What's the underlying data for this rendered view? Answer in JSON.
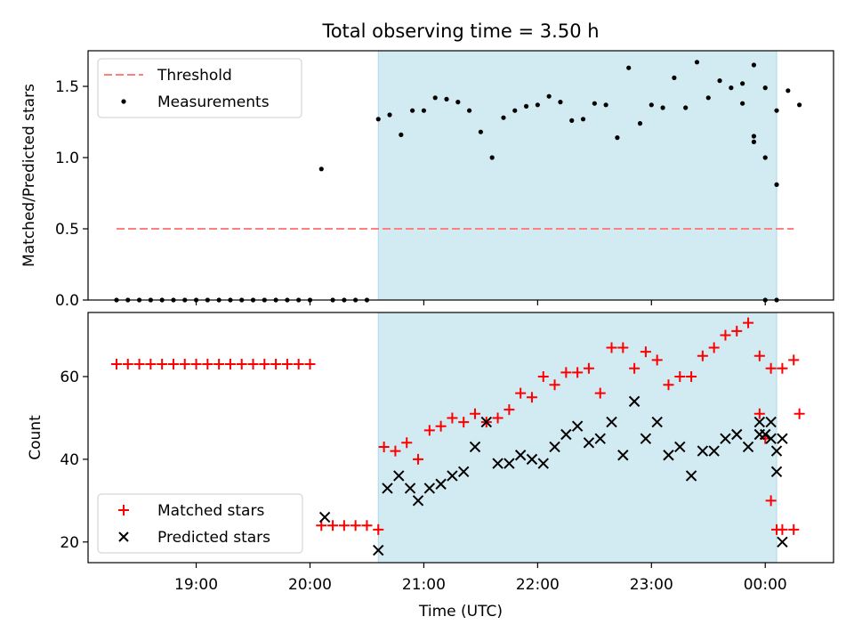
{
  "figure": {
    "title": "Total observing time = 3.50 h"
  },
  "chart_data": [
    {
      "type": "scatter",
      "panel": "top",
      "title": "Total observing time = 3.50 h",
      "xlabel": "",
      "ylabel": "Matched/Predicted stars",
      "x_unit": "time of day (UTC), decimal hours; values past 24 are after midnight",
      "xlim": [
        18.05,
        24.6
      ],
      "ylim": [
        0.0,
        1.75
      ],
      "yticks": [
        0.0,
        0.5,
        1.0,
        1.5
      ],
      "ytick_labels": [
        "0.0",
        "0.5",
        "1.0",
        "1.5"
      ],
      "grid": false,
      "legend_position": "upper-left",
      "highlight_span": {
        "x": [
          20.6,
          24.1
        ],
        "color": "#add8e6"
      },
      "threshold": {
        "name": "Threshold",
        "y": 0.5,
        "x": [
          18.3,
          24.25
        ],
        "color": "#ff7f7f",
        "style": "dashed"
      },
      "series": [
        {
          "name": "Measurements",
          "color": "#000000",
          "marker": "dot",
          "x": [
            18.3,
            18.4,
            18.5,
            18.6,
            18.7,
            18.8,
            18.9,
            19.0,
            19.1,
            19.2,
            19.3,
            19.4,
            19.5,
            19.6,
            19.7,
            19.8,
            19.9,
            20.0,
            20.1,
            20.2,
            20.3,
            20.4,
            20.5,
            20.6,
            20.7,
            20.8,
            20.9,
            21.0,
            21.1,
            21.2,
            21.3,
            21.4,
            21.5,
            21.6,
            21.7,
            21.8,
            21.9,
            22.0,
            22.1,
            22.2,
            22.3,
            22.4,
            22.5,
            22.6,
            22.7,
            22.8,
            22.9,
            23.0,
            23.1,
            23.2,
            23.3,
            23.4,
            23.5,
            23.6,
            23.7,
            23.8,
            23.9,
            24.0,
            24.1,
            24.2,
            24.3
          ],
          "y": [
            0.0,
            0.0,
            0.0,
            0.0,
            0.0,
            0.0,
            0.0,
            0.0,
            0.0,
            0.0,
            0.0,
            0.0,
            0.0,
            0.0,
            0.0,
            0.0,
            0.0,
            0.0,
            0.92,
            0.0,
            0.0,
            0.0,
            0.0,
            1.27,
            1.3,
            1.16,
            1.33,
            1.33,
            1.42,
            1.41,
            1.39,
            1.33,
            1.18,
            1.0,
            1.28,
            1.33,
            1.36,
            1.37,
            1.43,
            1.39,
            1.26,
            1.27,
            1.38,
            1.37,
            1.14,
            1.63,
            1.24,
            1.37,
            1.35,
            1.56,
            1.35,
            1.67,
            1.42,
            1.54,
            1.49,
            1.52,
            1.65,
            1.49,
            1.33,
            1.47,
            1.37
          ]
        }
      ],
      "series_extra_tail": {
        "x": [
          23.8,
          23.9,
          24.0,
          24.1,
          23.9,
          24.0,
          24.1
        ],
        "y": [
          1.38,
          1.11,
          1.0,
          0.81,
          1.15,
          0.0,
          0.0
        ]
      }
    },
    {
      "type": "scatter",
      "panel": "bottom",
      "title": "",
      "xlabel": "Time (UTC)",
      "ylabel": "Count",
      "x_unit": "time of day (UTC), decimal hours; values past 24 are after midnight",
      "xlim": [
        18.05,
        24.6
      ],
      "ylim": [
        15,
        75.5
      ],
      "xticks": [
        19,
        20,
        21,
        22,
        23,
        24
      ],
      "xtick_labels": [
        "19:00",
        "20:00",
        "21:00",
        "22:00",
        "23:00",
        "00:00"
      ],
      "yticks": [
        20,
        40,
        60
      ],
      "ytick_labels": [
        "20",
        "40",
        "60"
      ],
      "grid": false,
      "legend_position": "lower-left",
      "highlight_span": {
        "x": [
          20.6,
          24.1
        ],
        "color": "#add8e6"
      },
      "series": [
        {
          "name": "Matched stars",
          "color": "#ff0000",
          "marker": "plus",
          "x": [
            18.3,
            18.4,
            18.5,
            18.6,
            18.7,
            18.8,
            18.9,
            19.0,
            19.1,
            19.2,
            19.3,
            19.4,
            19.5,
            19.6,
            19.7,
            19.8,
            19.9,
            20.0,
            20.1,
            20.2,
            20.3,
            20.4,
            20.5,
            20.6,
            20.65,
            20.75,
            20.85,
            20.95,
            21.05,
            21.15,
            21.25,
            21.35,
            21.45,
            21.55,
            21.65,
            21.75,
            21.85,
            21.95,
            22.05,
            22.15,
            22.25,
            22.35,
            22.45,
            22.55,
            22.65,
            22.75,
            22.85,
            22.95,
            23.05,
            23.15,
            23.25,
            23.35,
            23.45,
            23.55,
            23.65,
            23.75,
            23.85,
            23.95,
            24.05,
            24.15,
            24.25,
            24.3
          ],
          "y": [
            63,
            63,
            63,
            63,
            63,
            63,
            63,
            63,
            63,
            63,
            63,
            63,
            63,
            63,
            63,
            63,
            63,
            63,
            24,
            24,
            24,
            24,
            24,
            23,
            43,
            42,
            44,
            40,
            47,
            48,
            50,
            49,
            51,
            49,
            50,
            52,
            56,
            55,
            60,
            58,
            61,
            61,
            62,
            56,
            67,
            67,
            62,
            66,
            64,
            58,
            60,
            60,
            65,
            67,
            70,
            71,
            73,
            65,
            62,
            62,
            64,
            51
          ]
        },
        {
          "name": "Predicted stars",
          "color": "#000000",
          "marker": "x",
          "x": [
            20.13,
            20.6,
            20.68,
            20.78,
            20.88,
            20.95,
            21.05,
            21.15,
            21.25,
            21.35,
            21.45,
            21.55,
            21.65,
            21.75,
            21.85,
            21.95,
            22.05,
            22.15,
            22.25,
            22.35,
            22.45,
            22.55,
            22.65,
            22.75,
            22.85,
            22.95,
            23.05,
            23.15,
            23.25,
            23.35,
            23.45,
            23.55,
            23.65,
            23.75,
            23.85,
            23.95,
            24.05,
            24.1,
            24.15
          ],
          "y": [
            26,
            18,
            33,
            36,
            33,
            30,
            33,
            34,
            36,
            37,
            43,
            49,
            39,
            39,
            41,
            40,
            39,
            43,
            46,
            48,
            44,
            45,
            49,
            41,
            54,
            45,
            49,
            41,
            43,
            36,
            42,
            42,
            45,
            46,
            43,
            49,
            49,
            42,
            45
          ]
        }
      ],
      "series_extra_tail": {
        "matched": {
          "x": [
            23.95,
            24.0,
            24.05,
            24.1,
            24.15,
            24.25
          ],
          "y": [
            51,
            45,
            30,
            23,
            23,
            23
          ]
        },
        "predicted": {
          "x": [
            23.95,
            24.0,
            24.05,
            24.1,
            24.15
          ],
          "y": [
            46,
            46,
            45,
            37,
            20
          ]
        }
      }
    }
  ]
}
